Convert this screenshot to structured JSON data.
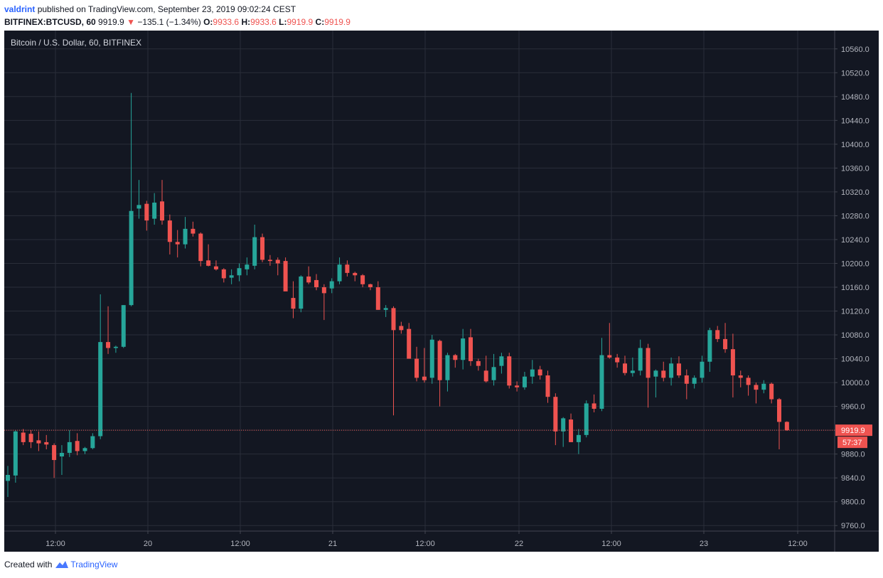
{
  "header": {
    "author": "valdrint",
    "published_text": "published on TradingView.com, September 23, 2019 09:02:24 CEST",
    "symbol": "BITFINEX:BTCUSD, 60",
    "last": "9919.9",
    "change": "−135.1 (−1.34%)",
    "o_label": "O:",
    "o_value": "9933.6",
    "h_label": "H:",
    "h_value": "9933.6",
    "l_label": "L:",
    "l_value": "9919.9",
    "c_label": "C:",
    "c_value": "9919.9"
  },
  "footer": {
    "created_with": "Created with",
    "brand": "TradingView"
  },
  "colors": {
    "background": "#131722",
    "grid": "#2a2e39",
    "axis_text": "#b2b5be",
    "up": "#26a69a",
    "down": "#ef5350",
    "price_line": "#ef5350"
  },
  "chart_data": {
    "type": "candlestick",
    "title": "Bitcoin / U.S. Dollar, 60, BITFINEX",
    "xlabel": "",
    "ylabel": "",
    "ylim": [
      9740,
      10580
    ],
    "y_ticks": [
      "10560.0",
      "10520.0",
      "10480.0",
      "10440.0",
      "10400.0",
      "10360.0",
      "10320.0",
      "10280.0",
      "10240.0",
      "10200.0",
      "10160.0",
      "10120.0",
      "10080.0",
      "10040.0",
      "10000.0",
      "9960.0",
      "9920.0",
      "9880.0",
      "9840.0",
      "9800.0",
      "9760.0"
    ],
    "x_ticks": [
      "12:00",
      "20",
      "12:00",
      "21",
      "12:00",
      "22",
      "12:00",
      "23",
      "12:00"
    ],
    "last_price_label": "9919.9",
    "countdown_label": "57:37",
    "grid": true,
    "legend": "none",
    "candles": [
      [
        9835,
        9860,
        9808,
        9845
      ],
      [
        9844,
        9920,
        9832,
        9918
      ],
      [
        9916,
        9922,
        9895,
        9900
      ],
      [
        9914,
        9920,
        9890,
        9900
      ],
      [
        9903,
        9918,
        9885,
        9898
      ],
      [
        9900,
        9912,
        9888,
        9896
      ],
      [
        9895,
        9898,
        9840,
        9870
      ],
      [
        9876,
        9895,
        9845,
        9882
      ],
      [
        9882,
        9920,
        9875,
        9900
      ],
      [
        9902,
        9915,
        9878,
        9885
      ],
      [
        9885,
        9892,
        9880,
        9890
      ],
      [
        9890,
        9915,
        9888,
        9910
      ],
      [
        9910,
        10148,
        9905,
        10068
      ],
      [
        10068,
        10128,
        10048,
        10058
      ],
      [
        10058,
        10062,
        10050,
        10060
      ],
      [
        10060,
        10130,
        10058,
        10130
      ],
      [
        10130,
        10486,
        10128,
        10288
      ],
      [
        10292,
        10340,
        10275,
        10298
      ],
      [
        10300,
        10305,
        10255,
        10272
      ],
      [
        10275,
        10318,
        10265,
        10302
      ],
      [
        10304,
        10340,
        10265,
        10272
      ],
      [
        10272,
        10282,
        10215,
        10236
      ],
      [
        10236,
        10256,
        10210,
        10232
      ],
      [
        10232,
        10278,
        10225,
        10258
      ],
      [
        10258,
        10270,
        10245,
        10250
      ],
      [
        10250,
        10252,
        10195,
        10204
      ],
      [
        10205,
        10232,
        10195,
        10196
      ],
      [
        10195,
        10205,
        10188,
        10190
      ],
      [
        10190,
        10192,
        10168,
        10175
      ],
      [
        10176,
        10190,
        10165,
        10180
      ],
      [
        10180,
        10200,
        10170,
        10192
      ],
      [
        10190,
        10210,
        10180,
        10198
      ],
      [
        10196,
        10265,
        10190,
        10244
      ],
      [
        10244,
        10250,
        10202,
        10206
      ],
      [
        10206,
        10214,
        10196,
        10204
      ],
      [
        10206,
        10210,
        10180,
        10200
      ],
      [
        10204,
        10210,
        10155,
        10153
      ],
      [
        10142,
        10170,
        10108,
        10124
      ],
      [
        10124,
        10180,
        10118,
        10178
      ],
      [
        10178,
        10195,
        10165,
        10168
      ],
      [
        10172,
        10182,
        10155,
        10160
      ],
      [
        10160,
        10165,
        10105,
        10150
      ],
      [
        10158,
        10175,
        10150,
        10170
      ],
      [
        10170,
        10210,
        10165,
        10198
      ],
      [
        10198,
        10205,
        10178,
        10184
      ],
      [
        10184,
        10186,
        10170,
        10180
      ],
      [
        10180,
        10182,
        10160,
        10165
      ],
      [
        10165,
        10166,
        10155,
        10160
      ],
      [
        10160,
        10170,
        10122,
        10122
      ],
      [
        10122,
        10130,
        10110,
        10125
      ],
      [
        10125,
        10128,
        9945,
        10088
      ],
      [
        10095,
        10102,
        10082,
        10088
      ],
      [
        10090,
        10100,
        10045,
        10040
      ],
      [
        10040,
        10060,
        10002,
        10008
      ],
      [
        10010,
        10058,
        10000,
        10004
      ],
      [
        10008,
        10080,
        9998,
        10072
      ],
      [
        10070,
        10072,
        9960,
        10004
      ],
      [
        10004,
        10050,
        9985,
        10046
      ],
      [
        10046,
        10048,
        10025,
        10038
      ],
      [
        10038,
        10090,
        10022,
        10074
      ],
      [
        10076,
        10090,
        10028,
        10036
      ],
      [
        10036,
        10040,
        10020,
        10028
      ],
      [
        10020,
        10045,
        10000,
        10002
      ],
      [
        10004,
        10048,
        9995,
        10026
      ],
      [
        10028,
        10050,
        10015,
        10044
      ],
      [
        10044,
        10050,
        9990,
        9995
      ],
      [
        9995,
        10002,
        9985,
        9992
      ],
      [
        9992,
        10018,
        9988,
        10010
      ],
      [
        10010,
        10038,
        9998,
        10022
      ],
      [
        10022,
        10028,
        10005,
        10012
      ],
      [
        10012,
        10020,
        9966,
        9976
      ],
      [
        9976,
        9982,
        9895,
        9918
      ],
      [
        9918,
        9942,
        9892,
        9940
      ],
      [
        9938,
        9948,
        9900,
        9900
      ],
      [
        9900,
        9922,
        9880,
        9912
      ],
      [
        9912,
        9970,
        9908,
        9965
      ],
      [
        9965,
        9980,
        9950,
        9956
      ],
      [
        9956,
        10075,
        9952,
        10046
      ],
      [
        10046,
        10100,
        10040,
        10042
      ],
      [
        10042,
        10048,
        10025,
        10034
      ],
      [
        10032,
        10045,
        10012,
        10016
      ],
      [
        10016,
        10042,
        10010,
        10020
      ],
      [
        10020,
        10072,
        10012,
        10058
      ],
      [
        10058,
        10065,
        9958,
        10008
      ],
      [
        10010,
        10022,
        9975,
        10020
      ],
      [
        10020,
        10035,
        10002,
        10008
      ],
      [
        10008,
        10042,
        9995,
        10032
      ],
      [
        10032,
        10044,
        10008,
        10012
      ],
      [
        10012,
        10022,
        9972,
        9998
      ],
      [
        9998,
        10012,
        9990,
        10008
      ],
      [
        10008,
        10045,
        10000,
        10035
      ],
      [
        10035,
        10092,
        10018,
        10088
      ],
      [
        10088,
        10095,
        10068,
        10073
      ],
      [
        10073,
        10100,
        10050,
        10056
      ],
      [
        10056,
        10082,
        9975,
        10012
      ],
      [
        10012,
        10020,
        9992,
        10008
      ],
      [
        10008,
        10012,
        9978,
        9996
      ],
      [
        9996,
        10000,
        9965,
        9988
      ],
      [
        9988,
        10004,
        9982,
        9998
      ],
      [
        9998,
        10000,
        9965,
        9972
      ],
      [
        9972,
        9974,
        9888,
        9934
      ],
      [
        9934,
        9935,
        9919,
        9920
      ]
    ]
  }
}
